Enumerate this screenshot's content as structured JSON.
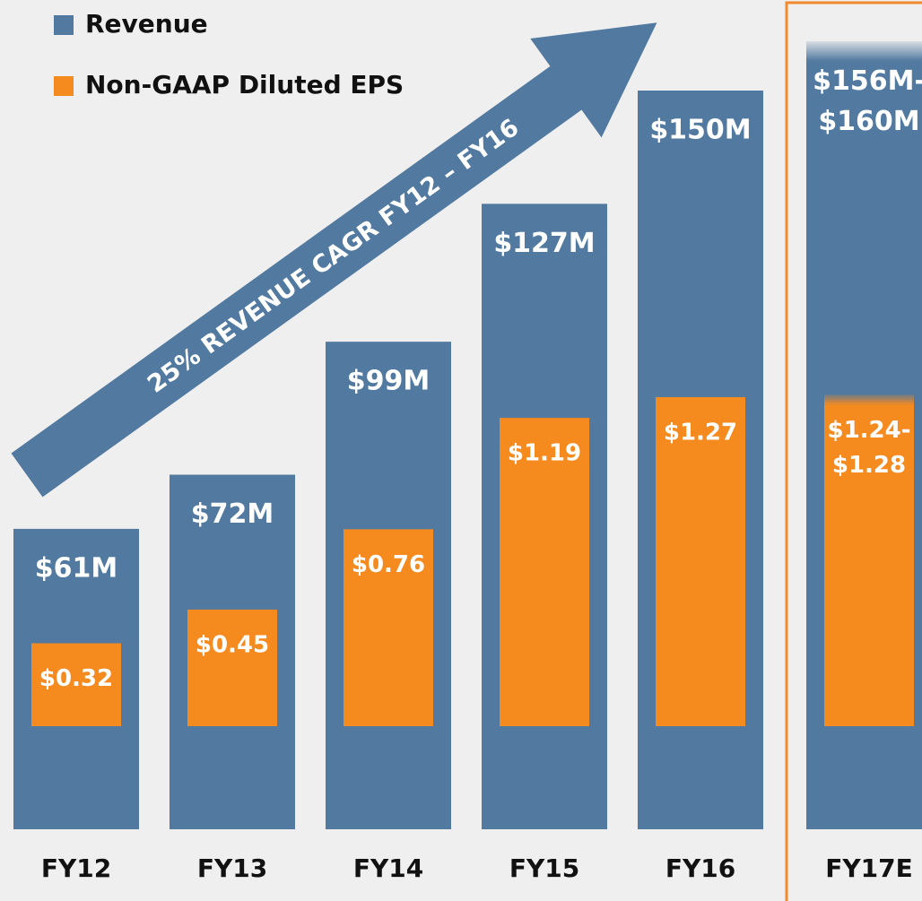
{
  "chart_data": {
    "type": "bar",
    "categories": [
      "FY12",
      "FY13",
      "FY14",
      "FY15",
      "FY16",
      "FY17E"
    ],
    "series": [
      {
        "name": "Revenue",
        "color": "#52799f",
        "values": [
          61,
          72,
          99,
          127,
          150,
          160
        ],
        "estimate_low": 156,
        "value_labels": [
          "$61M",
          "$72M",
          "$99M",
          "$127M",
          "$150M",
          "$156M-$160M"
        ]
      },
      {
        "name": "Non-GAAP Diluted EPS",
        "color": "#f58a1f",
        "values": [
          0.32,
          0.45,
          0.76,
          1.19,
          1.27,
          1.28
        ],
        "estimate_low": 1.24,
        "value_labels": [
          "$0.32",
          "$0.45",
          "$0.76",
          "$1.19",
          "$1.27",
          "$1.24-$1.28"
        ]
      }
    ],
    "annotation": "25% REVENUE CAGR FY12 – FY16",
    "highlight_color": "#f08a2c"
  }
}
